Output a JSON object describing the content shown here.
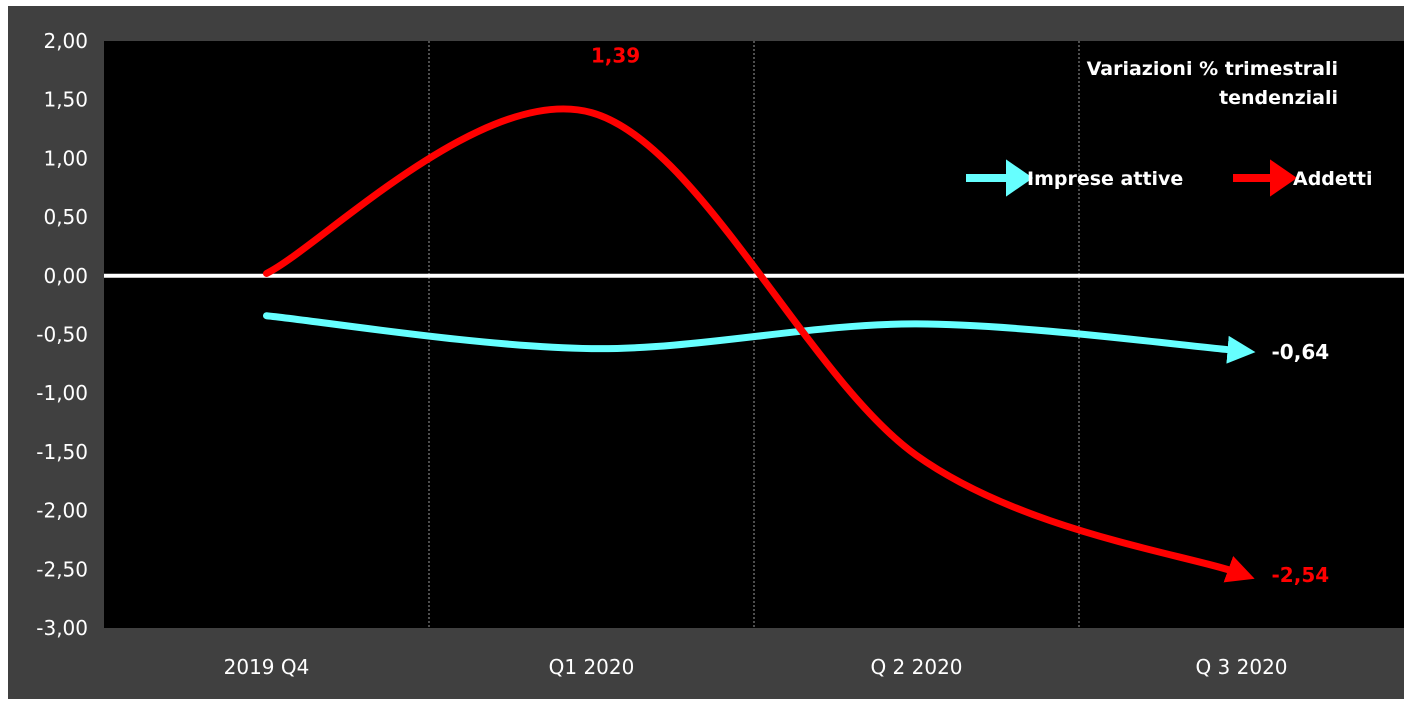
{
  "chart_data": {
    "type": "line",
    "categories": [
      "2019 Q4",
      "Q1 2020",
      "Q 2 2020",
      "Q 3  2020"
    ],
    "series": [
      {
        "name": "Imprese attive",
        "color": "#66ffff",
        "values": [
          -0.34,
          -0.62,
          -0.41,
          -0.64
        ],
        "end_label": "-0,64",
        "end_label_color": "#ffffff"
      },
      {
        "name": "Addetti",
        "color": "#ff0000",
        "values": [
          0.02,
          1.39,
          -1.53,
          -2.54
        ],
        "peak_label": "1,39",
        "end_label": "-2,54",
        "end_label_color": "#ff0000"
      }
    ],
    "ylim": [
      -3,
      2
    ],
    "y_ticks": [
      2,
      1.5,
      1,
      0.5,
      0,
      -0.5,
      -1,
      -1.5,
      -2,
      -2.5,
      -3
    ],
    "y_tick_labels": [
      "2,00",
      "1,50",
      "1,00",
      "0,50",
      "0,00",
      "-0,50",
      "-1,00",
      "-1,50",
      "-2,00",
      "-2,50",
      "-3,00"
    ],
    "annotation": {
      "line1": "Variazioni % trimestrali",
      "line2": "tendenziali"
    },
    "legend_position": "top-right",
    "zero_line": true,
    "vertical_grid": true,
    "background": "#000000",
    "frame_color": "#404040"
  }
}
